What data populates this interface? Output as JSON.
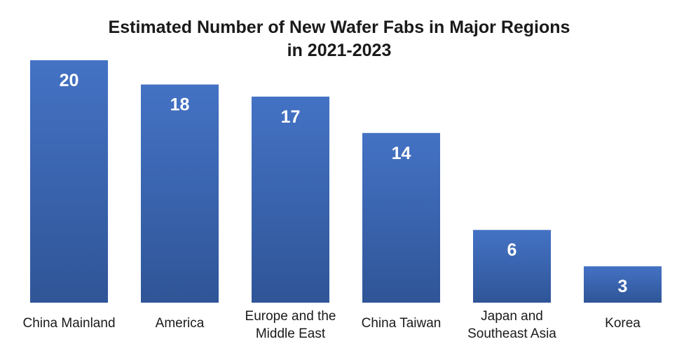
{
  "chart_data": {
    "type": "bar",
    "title_lines": [
      "Estimated Number of New Wafer Fabs in Major Regions",
      "in 2021-2023"
    ],
    "categories": [
      [
        "China Mainland"
      ],
      [
        "America"
      ],
      [
        "Europe and the",
        "Middle East"
      ],
      [
        "China Taiwan"
      ],
      [
        "Japan and",
        "Southeast Asia"
      ],
      [
        "Korea"
      ]
    ],
    "values": [
      20,
      18,
      17,
      14,
      6,
      3
    ],
    "xlabel": "",
    "ylabel": "",
    "ylim": [
      0,
      20
    ],
    "grid": false,
    "legend": "none",
    "bar_color": "#4472C4",
    "bar_color_dark": "#2F5597"
  }
}
